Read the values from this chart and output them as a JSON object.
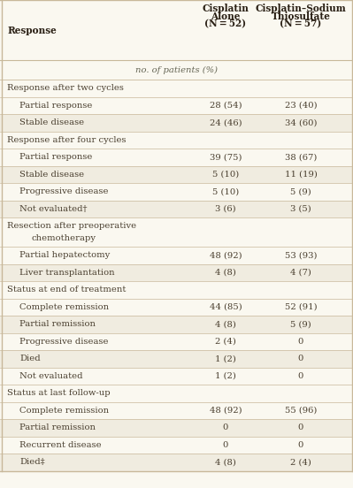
{
  "bg_color": "#faf8f0",
  "row_alt_color": "#f0ece0",
  "row_plain_color": "#faf8f0",
  "col1_header_line1": "Cisplatin",
  "col1_header_line2": "Alone",
  "col1_header_line3": "(N = 52)",
  "col2_header_line1": "Cisplatin–Sodium",
  "col2_header_line2": "Thiosulfate",
  "col2_header_line3": "(N = 57)",
  "row_header": "Response",
  "subtitle": "no. of patients (%)",
  "section_text_color": "#4a3f2f",
  "data_text_color": "#4a3f2f",
  "header_text_color": "#2a2015",
  "border_color": "#c8b89a",
  "font_size": 7.2,
  "header_font_size": 7.6,
  "rows": [
    {
      "label": "Response after two cycles",
      "type": "section",
      "indent": false,
      "col1": "",
      "col2": ""
    },
    {
      "label": "Partial response",
      "type": "data",
      "indent": true,
      "col1": "28 (54)",
      "col2": "23 (40)"
    },
    {
      "label": "Stable disease",
      "type": "data",
      "indent": true,
      "col1": "24 (46)",
      "col2": "34 (60)"
    },
    {
      "label": "Response after four cycles",
      "type": "section",
      "indent": false,
      "col1": "",
      "col2": ""
    },
    {
      "label": "Partial response",
      "type": "data",
      "indent": true,
      "col1": "39 (75)",
      "col2": "38 (67)"
    },
    {
      "label": "Stable disease",
      "type": "data",
      "indent": true,
      "col1": "5 (10)",
      "col2": "11 (19)"
    },
    {
      "label": "Progressive disease",
      "type": "data",
      "indent": true,
      "col1": "5 (10)",
      "col2": "5 (9)"
    },
    {
      "label": "Not evaluated†",
      "type": "data",
      "indent": true,
      "col1": "3 (6)",
      "col2": "3 (5)"
    },
    {
      "label": "Resection after preoperative",
      "type": "section2",
      "indent": false,
      "col1": "",
      "col2": ""
    },
    {
      "label": "Partial hepatectomy",
      "type": "data",
      "indent": true,
      "col1": "48 (92)",
      "col2": "53 (93)"
    },
    {
      "label": "Liver transplantation",
      "type": "data",
      "indent": true,
      "col1": "4 (8)",
      "col2": "4 (7)"
    },
    {
      "label": "Status at end of treatment",
      "type": "section",
      "indent": false,
      "col1": "",
      "col2": ""
    },
    {
      "label": "Complete remission",
      "type": "data",
      "indent": true,
      "col1": "44 (85)",
      "col2": "52 (91)"
    },
    {
      "label": "Partial remission",
      "type": "data",
      "indent": true,
      "col1": "4 (8)",
      "col2": "5 (9)"
    },
    {
      "label": "Progressive disease",
      "type": "data",
      "indent": true,
      "col1": "2 (4)",
      "col2": "0"
    },
    {
      "label": "Died",
      "type": "data",
      "indent": true,
      "col1": "1 (2)",
      "col2": "0"
    },
    {
      "label": "Not evaluated",
      "type": "data",
      "indent": true,
      "col1": "1 (2)",
      "col2": "0"
    },
    {
      "label": "Status at last follow-up",
      "type": "section",
      "indent": false,
      "col1": "",
      "col2": ""
    },
    {
      "label": "Complete remission",
      "type": "data",
      "indent": true,
      "col1": "48 (92)",
      "col2": "55 (96)"
    },
    {
      "label": "Partial remission",
      "type": "data",
      "indent": true,
      "col1": "0",
      "col2": "0"
    },
    {
      "label": "Recurrent disease",
      "type": "data",
      "indent": true,
      "col1": "0",
      "col2": "0"
    },
    {
      "label": "Died‡",
      "type": "data",
      "indent": true,
      "col1": "4 (8)",
      "col2": "2 (4)"
    }
  ]
}
